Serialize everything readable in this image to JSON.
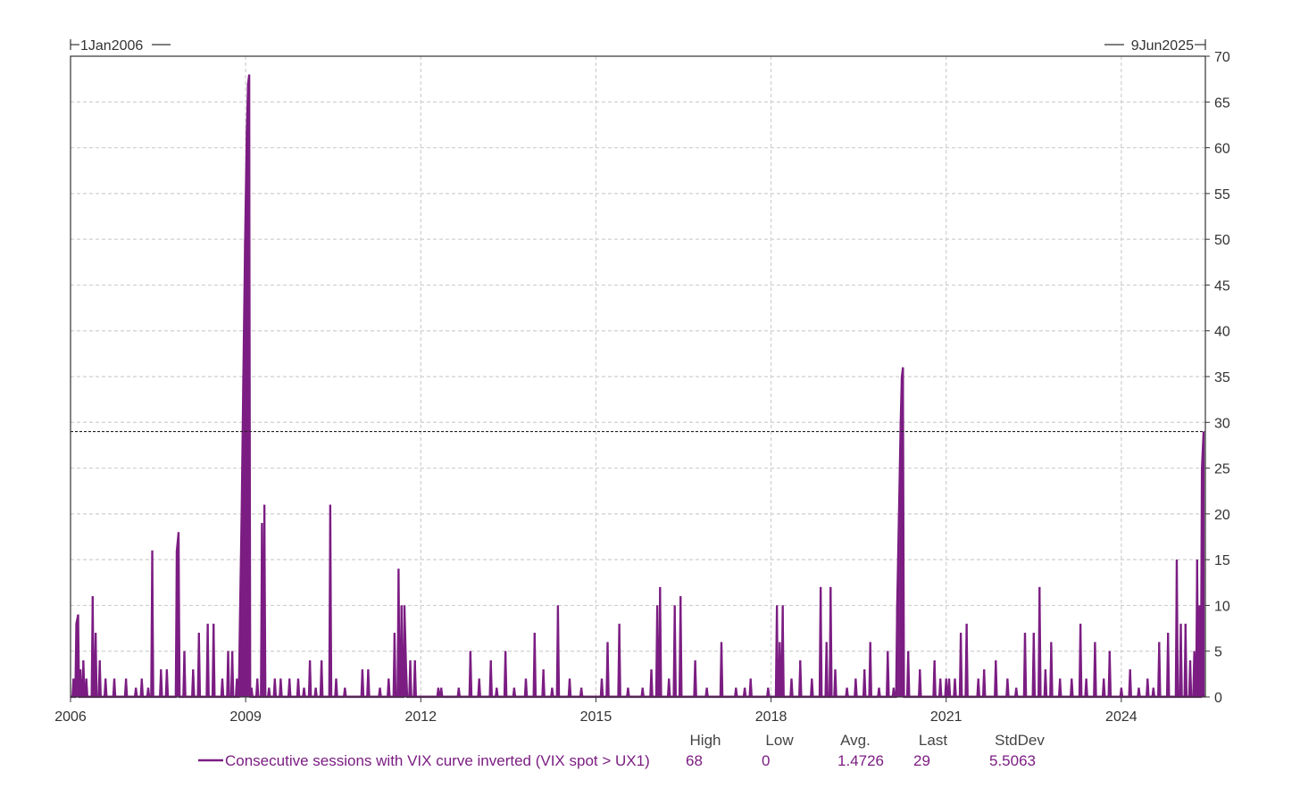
{
  "chart_data": {
    "type": "line",
    "range_start_label": "1Jan2006",
    "range_end_label": "9Jun2025",
    "xlim": [
      2006.0,
      2025.44
    ],
    "ylim": [
      0,
      70
    ],
    "x_ticks": [
      2006,
      2009,
      2012,
      2015,
      2018,
      2021,
      2024
    ],
    "y_ticks": [
      0,
      5,
      10,
      15,
      20,
      25,
      30,
      35,
      40,
      45,
      50,
      55,
      60,
      65,
      70
    ],
    "y_axis_position": "right",
    "grid": true,
    "reference_line": {
      "y": 29,
      "style": "dashed"
    },
    "colors": {
      "series": "#7b1d82",
      "grid": "#cfcfcf",
      "axis": "#333333",
      "reference": "#222222"
    },
    "series": [
      {
        "name": "Consecutive sessions with VIX curve inverted (VIX spot > UX1)",
        "spikes": [
          [
            2006.05,
            2
          ],
          [
            2006.1,
            8
          ],
          [
            2006.13,
            9
          ],
          [
            2006.17,
            3
          ],
          [
            2006.22,
            4
          ],
          [
            2006.27,
            2
          ],
          [
            2006.38,
            11
          ],
          [
            2006.43,
            7
          ],
          [
            2006.5,
            4
          ],
          [
            2006.6,
            2
          ],
          [
            2006.75,
            2
          ],
          [
            2006.95,
            2
          ],
          [
            2007.12,
            1
          ],
          [
            2007.22,
            2
          ],
          [
            2007.33,
            1
          ],
          [
            2007.4,
            16
          ],
          [
            2007.55,
            3
          ],
          [
            2007.65,
            3
          ],
          [
            2007.82,
            16
          ],
          [
            2007.85,
            18
          ],
          [
            2007.95,
            5
          ],
          [
            2008.1,
            3
          ],
          [
            2008.2,
            7
          ],
          [
            2008.35,
            8
          ],
          [
            2008.45,
            8
          ],
          [
            2008.6,
            2
          ],
          [
            2008.7,
            5
          ],
          [
            2008.77,
            5
          ],
          [
            2008.85,
            2
          ],
          [
            2008.9,
            8
          ],
          [
            2008.93,
            20
          ],
          [
            2008.96,
            35
          ],
          [
            2008.99,
            50
          ],
          [
            2009.02,
            62
          ],
          [
            2009.04,
            67
          ],
          [
            2009.06,
            68
          ],
          [
            2009.1,
            1
          ],
          [
            2009.2,
            2
          ],
          [
            2009.28,
            19
          ],
          [
            2009.32,
            21
          ],
          [
            2009.4,
            1
          ],
          [
            2009.5,
            2
          ],
          [
            2009.6,
            2
          ],
          [
            2009.75,
            2
          ],
          [
            2009.9,
            2
          ],
          [
            2010.0,
            1
          ],
          [
            2010.1,
            4
          ],
          [
            2010.2,
            1
          ],
          [
            2010.3,
            4
          ],
          [
            2010.45,
            21
          ],
          [
            2010.55,
            2
          ],
          [
            2010.7,
            1
          ],
          [
            2011.0,
            3
          ],
          [
            2011.1,
            3
          ],
          [
            2011.3,
            1
          ],
          [
            2011.45,
            2
          ],
          [
            2011.55,
            7
          ],
          [
            2011.62,
            14
          ],
          [
            2011.67,
            10
          ],
          [
            2011.72,
            10
          ],
          [
            2011.75,
            3
          ],
          [
            2011.82,
            4
          ],
          [
            2011.9,
            4
          ],
          [
            2012.3,
            1
          ],
          [
            2012.35,
            1
          ],
          [
            2012.65,
            1
          ],
          [
            2012.85,
            5
          ],
          [
            2013.0,
            2
          ],
          [
            2013.2,
            4
          ],
          [
            2013.3,
            1
          ],
          [
            2013.45,
            5
          ],
          [
            2013.6,
            1
          ],
          [
            2013.8,
            2
          ],
          [
            2013.95,
            7
          ],
          [
            2014.1,
            3
          ],
          [
            2014.25,
            1
          ],
          [
            2014.35,
            10
          ],
          [
            2014.55,
            2
          ],
          [
            2014.75,
            1
          ],
          [
            2015.1,
            2
          ],
          [
            2015.2,
            6
          ],
          [
            2015.4,
            8
          ],
          [
            2015.55,
            1
          ],
          [
            2015.8,
            1
          ],
          [
            2015.95,
            3
          ],
          [
            2016.05,
            10
          ],
          [
            2016.1,
            12
          ],
          [
            2016.25,
            2
          ],
          [
            2016.35,
            10
          ],
          [
            2016.45,
            11
          ],
          [
            2016.7,
            4
          ],
          [
            2016.9,
            1
          ],
          [
            2017.15,
            6
          ],
          [
            2017.4,
            1
          ],
          [
            2017.55,
            1
          ],
          [
            2017.65,
            2
          ],
          [
            2017.95,
            1
          ],
          [
            2018.1,
            10
          ],
          [
            2018.15,
            6
          ],
          [
            2018.2,
            10
          ],
          [
            2018.35,
            2
          ],
          [
            2018.5,
            4
          ],
          [
            2018.7,
            2
          ],
          [
            2018.85,
            12
          ],
          [
            2018.95,
            6
          ],
          [
            2019.02,
            12
          ],
          [
            2019.1,
            3
          ],
          [
            2019.3,
            1
          ],
          [
            2019.45,
            2
          ],
          [
            2019.6,
            3
          ],
          [
            2019.7,
            6
          ],
          [
            2019.85,
            1
          ],
          [
            2020.0,
            5
          ],
          [
            2020.1,
            1
          ],
          [
            2020.16,
            10
          ],
          [
            2020.19,
            20
          ],
          [
            2020.22,
            30
          ],
          [
            2020.24,
            35
          ],
          [
            2020.26,
            36
          ],
          [
            2020.35,
            5
          ],
          [
            2020.55,
            3
          ],
          [
            2020.8,
            4
          ],
          [
            2020.9,
            2
          ],
          [
            2021.0,
            2
          ],
          [
            2021.05,
            2
          ],
          [
            2021.15,
            2
          ],
          [
            2021.25,
            7
          ],
          [
            2021.35,
            8
          ],
          [
            2021.55,
            2
          ],
          [
            2021.65,
            3
          ],
          [
            2021.85,
            4
          ],
          [
            2022.05,
            2
          ],
          [
            2022.2,
            1
          ],
          [
            2022.35,
            7
          ],
          [
            2022.5,
            7
          ],
          [
            2022.6,
            12
          ],
          [
            2022.7,
            3
          ],
          [
            2022.8,
            6
          ],
          [
            2022.95,
            2
          ],
          [
            2023.15,
            2
          ],
          [
            2023.3,
            8
          ],
          [
            2023.4,
            2
          ],
          [
            2023.55,
            6
          ],
          [
            2023.7,
            2
          ],
          [
            2023.8,
            5
          ],
          [
            2024.0,
            1
          ],
          [
            2024.15,
            3
          ],
          [
            2024.3,
            1
          ],
          [
            2024.45,
            2
          ],
          [
            2024.55,
            1
          ],
          [
            2024.65,
            6
          ],
          [
            2024.8,
            7
          ],
          [
            2024.95,
            15
          ],
          [
            2025.02,
            8
          ],
          [
            2025.1,
            8
          ],
          [
            2025.18,
            4
          ],
          [
            2025.25,
            5
          ],
          [
            2025.3,
            15
          ],
          [
            2025.34,
            10
          ],
          [
            2025.38,
            25
          ],
          [
            2025.41,
            29
          ]
        ]
      }
    ],
    "stats_table": {
      "headers": [
        "High",
        "Low",
        "Avg.",
        "Last",
        "StdDev"
      ],
      "values": [
        "68",
        "0",
        "1.4726",
        "29",
        "5.5063"
      ]
    }
  }
}
